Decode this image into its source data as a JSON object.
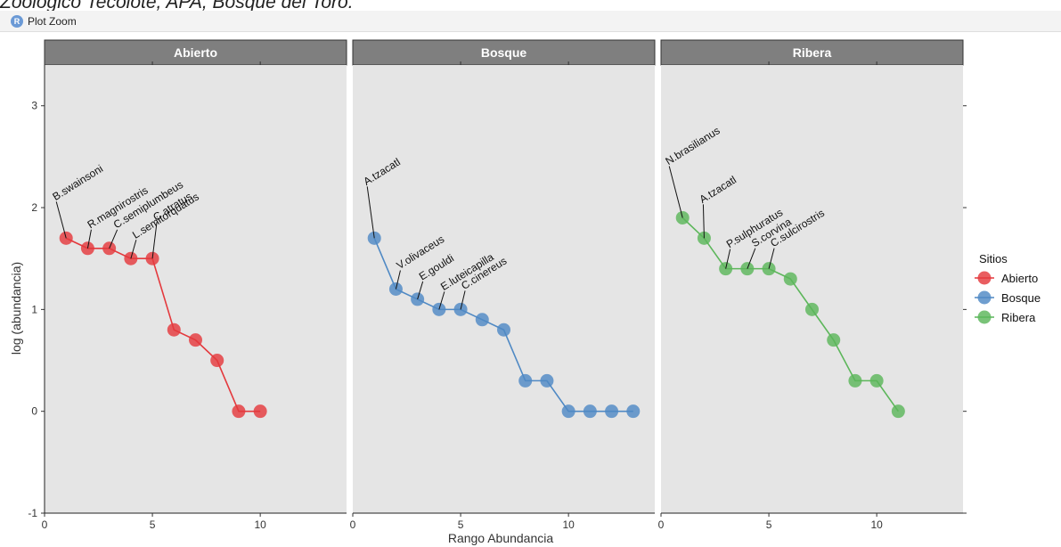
{
  "top_text": "Zoologico Tecolote, APA, Bosque del Toro.",
  "window": {
    "title": "Plot Zoom",
    "icon": "r-logo-icon",
    "icon_letter": "R"
  },
  "chart_data": {
    "type": "line",
    "xlabel": "Rango Abundancia",
    "ylabel": "log (abundancia)",
    "xlim": [
      0,
      14
    ],
    "ylim": [
      -1,
      3.4
    ],
    "x_ticks": [
      0,
      5,
      10
    ],
    "y_ticks": [
      -1,
      0,
      1,
      2,
      3
    ],
    "grid": false,
    "legend": {
      "title": "Sitios",
      "position": "right",
      "entries": [
        {
          "label": "Abierto",
          "color": "#e4393d"
        },
        {
          "label": "Bosque",
          "color": "#4f89c4"
        },
        {
          "label": "Ribera",
          "color": "#5cb65a"
        }
      ]
    },
    "panels": [
      {
        "name": "Abierto",
        "color": "#e4393d",
        "x": [
          1,
          2,
          3,
          4,
          5,
          6,
          7,
          8,
          9,
          10
        ],
        "y": [
          1.7,
          1.6,
          1.6,
          1.5,
          1.5,
          0.8,
          0.7,
          0.5,
          0,
          0
        ],
        "labels": [
          "B.swainsoni",
          "R.magnirostris",
          "C.semiplumbeus",
          "L.semitorquatus",
          "C.atratus"
        ]
      },
      {
        "name": "Bosque",
        "color": "#4f89c4",
        "x": [
          1,
          2,
          3,
          4,
          5,
          6,
          7,
          8,
          9,
          10,
          11,
          12,
          13
        ],
        "y": [
          1.7,
          1.2,
          1.1,
          1.0,
          1.0,
          0.9,
          0.8,
          0.3,
          0.3,
          0,
          0,
          0,
          0
        ],
        "labels": [
          "A.tzacatl",
          "V.olivaceus",
          "E.gouldi",
          "E.luteicapilla",
          "C.cinereus"
        ]
      },
      {
        "name": "Ribera",
        "color": "#5cb65a",
        "x": [
          1,
          2,
          3,
          4,
          5,
          6,
          7,
          8,
          9,
          10,
          11
        ],
        "y": [
          1.9,
          1.7,
          1.4,
          1.4,
          1.4,
          1.3,
          1.0,
          0.7,
          0.3,
          0.3,
          0
        ],
        "labels": [
          "N.brasilianus",
          "A.tzacatl",
          "P.sulphuratus",
          "S.corvina",
          "C.sulcirostris"
        ]
      }
    ]
  }
}
